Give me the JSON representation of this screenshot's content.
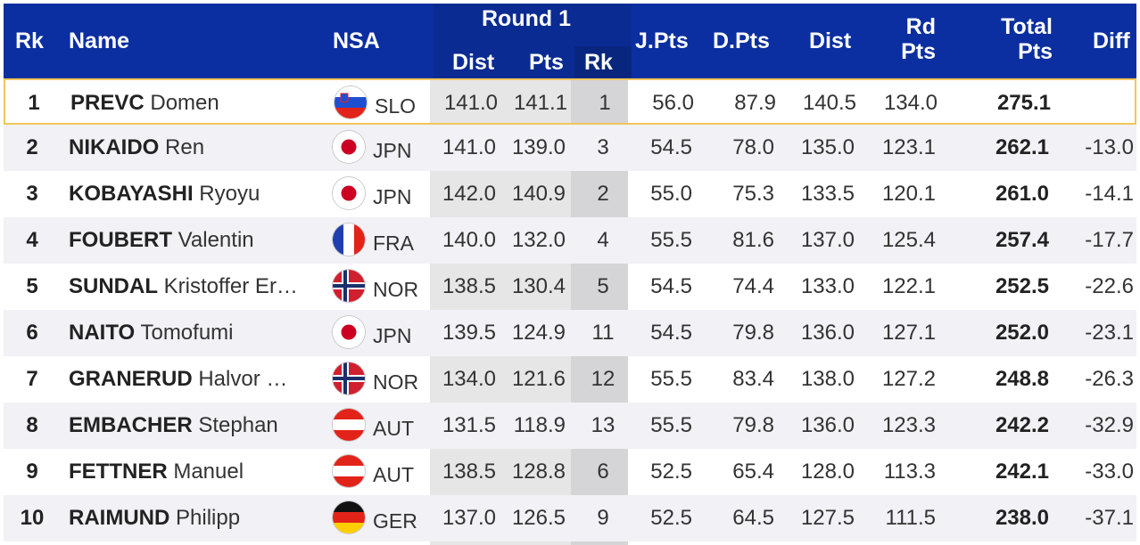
{
  "headers": {
    "rk": "Rk",
    "name": "Name",
    "nsa": "NSA",
    "round1": "Round 1",
    "r1_dist": "Dist",
    "r1_pts": "Pts",
    "r1_rk": "Rk",
    "jpts": "J.Pts",
    "dpts": "D.Pts",
    "dist": "Dist",
    "rdpts_line1": "Rd",
    "rdpts_line2": "Pts",
    "total_line1": "Total",
    "total_line2": "Pts",
    "diff": "Diff"
  },
  "rows": [
    {
      "rk": "1",
      "last": "PREVC",
      "first": "Domen",
      "nsa": "SLO",
      "flag": "slovenia-flag-icon",
      "r1_dist": "141.0",
      "r1_pts": "141.1",
      "r1_rk": "1",
      "jpts": "56.0",
      "dpts": "87.9",
      "dist": "140.5",
      "rdpts": "134.0",
      "total": "275.1",
      "diff": ""
    },
    {
      "rk": "2",
      "last": "NIKAIDO",
      "first": "Ren",
      "nsa": "JPN",
      "flag": "japan-flag-icon",
      "r1_dist": "141.0",
      "r1_pts": "139.0",
      "r1_rk": "3",
      "jpts": "54.5",
      "dpts": "78.0",
      "dist": "135.0",
      "rdpts": "123.1",
      "total": "262.1",
      "diff": "-13.0"
    },
    {
      "rk": "3",
      "last": "KOBAYASHI",
      "first": "Ryoyu",
      "nsa": "JPN",
      "flag": "japan-flag-icon",
      "r1_dist": "142.0",
      "r1_pts": "140.9",
      "r1_rk": "2",
      "jpts": "55.0",
      "dpts": "75.3",
      "dist": "133.5",
      "rdpts": "120.1",
      "total": "261.0",
      "diff": "-14.1"
    },
    {
      "rk": "4",
      "last": "FOUBERT",
      "first": "Valentin",
      "nsa": "FRA",
      "flag": "france-flag-icon",
      "r1_dist": "140.0",
      "r1_pts": "132.0",
      "r1_rk": "4",
      "jpts": "55.5",
      "dpts": "81.6",
      "dist": "137.0",
      "rdpts": "125.4",
      "total": "257.4",
      "diff": "-17.7"
    },
    {
      "rk": "5",
      "last": "SUNDAL",
      "first": "Kristoffer Er…",
      "nsa": "NOR",
      "flag": "norway-flag-icon",
      "r1_dist": "138.5",
      "r1_pts": "130.4",
      "r1_rk": "5",
      "jpts": "54.5",
      "dpts": "74.4",
      "dist": "133.0",
      "rdpts": "122.1",
      "total": "252.5",
      "diff": "-22.6"
    },
    {
      "rk": "6",
      "last": "NAITO",
      "first": "Tomofumi",
      "nsa": "JPN",
      "flag": "japan-flag-icon",
      "r1_dist": "139.5",
      "r1_pts": "124.9",
      "r1_rk": "11",
      "jpts": "54.5",
      "dpts": "79.8",
      "dist": "136.0",
      "rdpts": "127.1",
      "total": "252.0",
      "diff": "-23.1"
    },
    {
      "rk": "7",
      "last": "GRANERUD",
      "first": "Halvor …",
      "nsa": "NOR",
      "flag": "norway-flag-icon",
      "r1_dist": "134.0",
      "r1_pts": "121.6",
      "r1_rk": "12",
      "jpts": "55.5",
      "dpts": "83.4",
      "dist": "138.0",
      "rdpts": "127.2",
      "total": "248.8",
      "diff": "-26.3"
    },
    {
      "rk": "8",
      "last": "EMBACHER",
      "first": "Stephan",
      "nsa": "AUT",
      "flag": "austria-flag-icon",
      "r1_dist": "131.5",
      "r1_pts": "118.9",
      "r1_rk": "13",
      "jpts": "55.5",
      "dpts": "79.8",
      "dist": "136.0",
      "rdpts": "123.3",
      "total": "242.2",
      "diff": "-32.9"
    },
    {
      "rk": "9",
      "last": "FETTNER",
      "first": "Manuel",
      "nsa": "AUT",
      "flag": "austria-flag-icon",
      "r1_dist": "138.5",
      "r1_pts": "128.8",
      "r1_rk": "6",
      "jpts": "52.5",
      "dpts": "65.4",
      "dist": "128.0",
      "rdpts": "113.3",
      "total": "242.1",
      "diff": "-33.0"
    },
    {
      "rk": "10",
      "last": "RAIMUND",
      "first": "Philipp",
      "nsa": "GER",
      "flag": "germany-flag-icon",
      "r1_dist": "137.0",
      "r1_pts": "126.5",
      "r1_rk": "9",
      "jpts": "52.5",
      "dpts": "64.5",
      "dist": "127.5",
      "rdpts": "111.5",
      "total": "238.0",
      "diff": "-37.1"
    }
  ],
  "colors": {
    "header_bg": "#0b2fa0",
    "highlight_border": "#f0c65a",
    "round_band": "#e6e6e6",
    "round_rk_band": "#d5d5d8"
  }
}
